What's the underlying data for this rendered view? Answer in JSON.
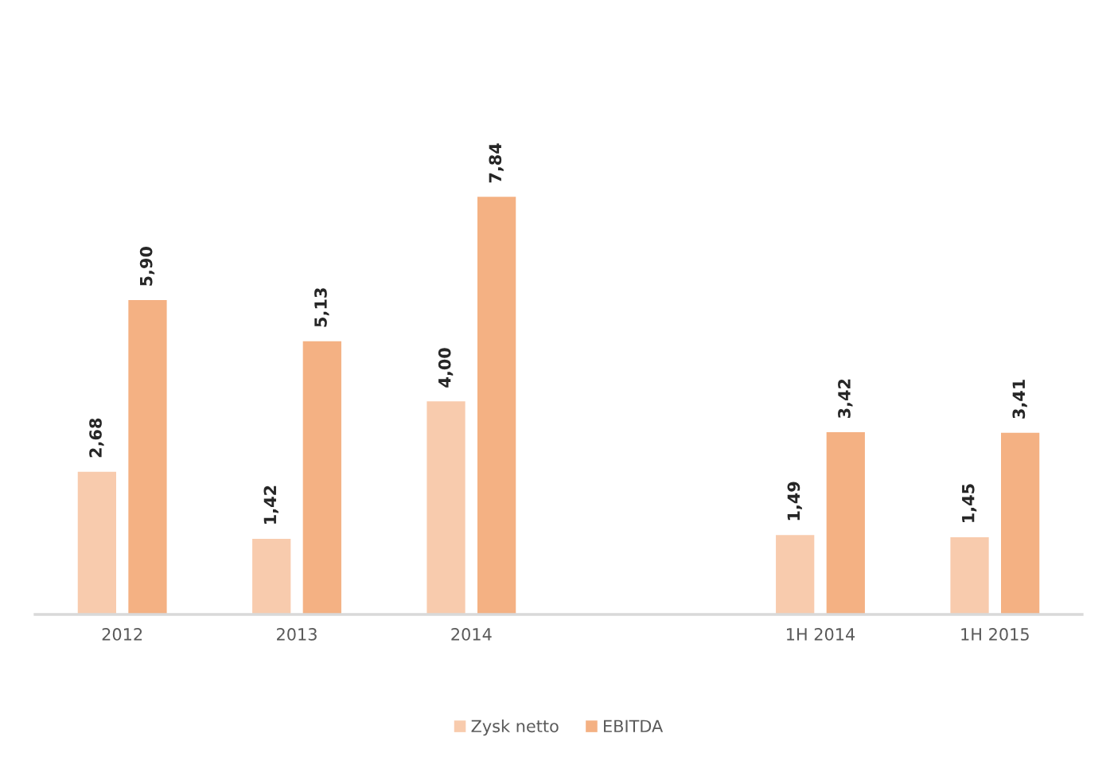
{
  "chart_data": {
    "type": "bar",
    "categories": [
      "2012",
      "2013",
      "2014",
      null,
      "1H 2014",
      "1H 2015"
    ],
    "series": [
      {
        "name": "Zysk netto",
        "color": "#f8cbad",
        "values": [
          2.68,
          1.42,
          4.0,
          null,
          1.49,
          1.45
        ],
        "value_labels": [
          "2,68",
          "1,42",
          "4,00",
          null,
          "1,49",
          "1,45"
        ]
      },
      {
        "name": "EBITDA",
        "color": "#f4b183",
        "values": [
          5.9,
          5.13,
          7.84,
          null,
          3.42,
          3.41
        ],
        "value_labels": [
          "5,90",
          "5,13",
          "7,84",
          null,
          "3,42",
          "3,41"
        ]
      }
    ],
    "legend": "bottom",
    "grid": false
  }
}
